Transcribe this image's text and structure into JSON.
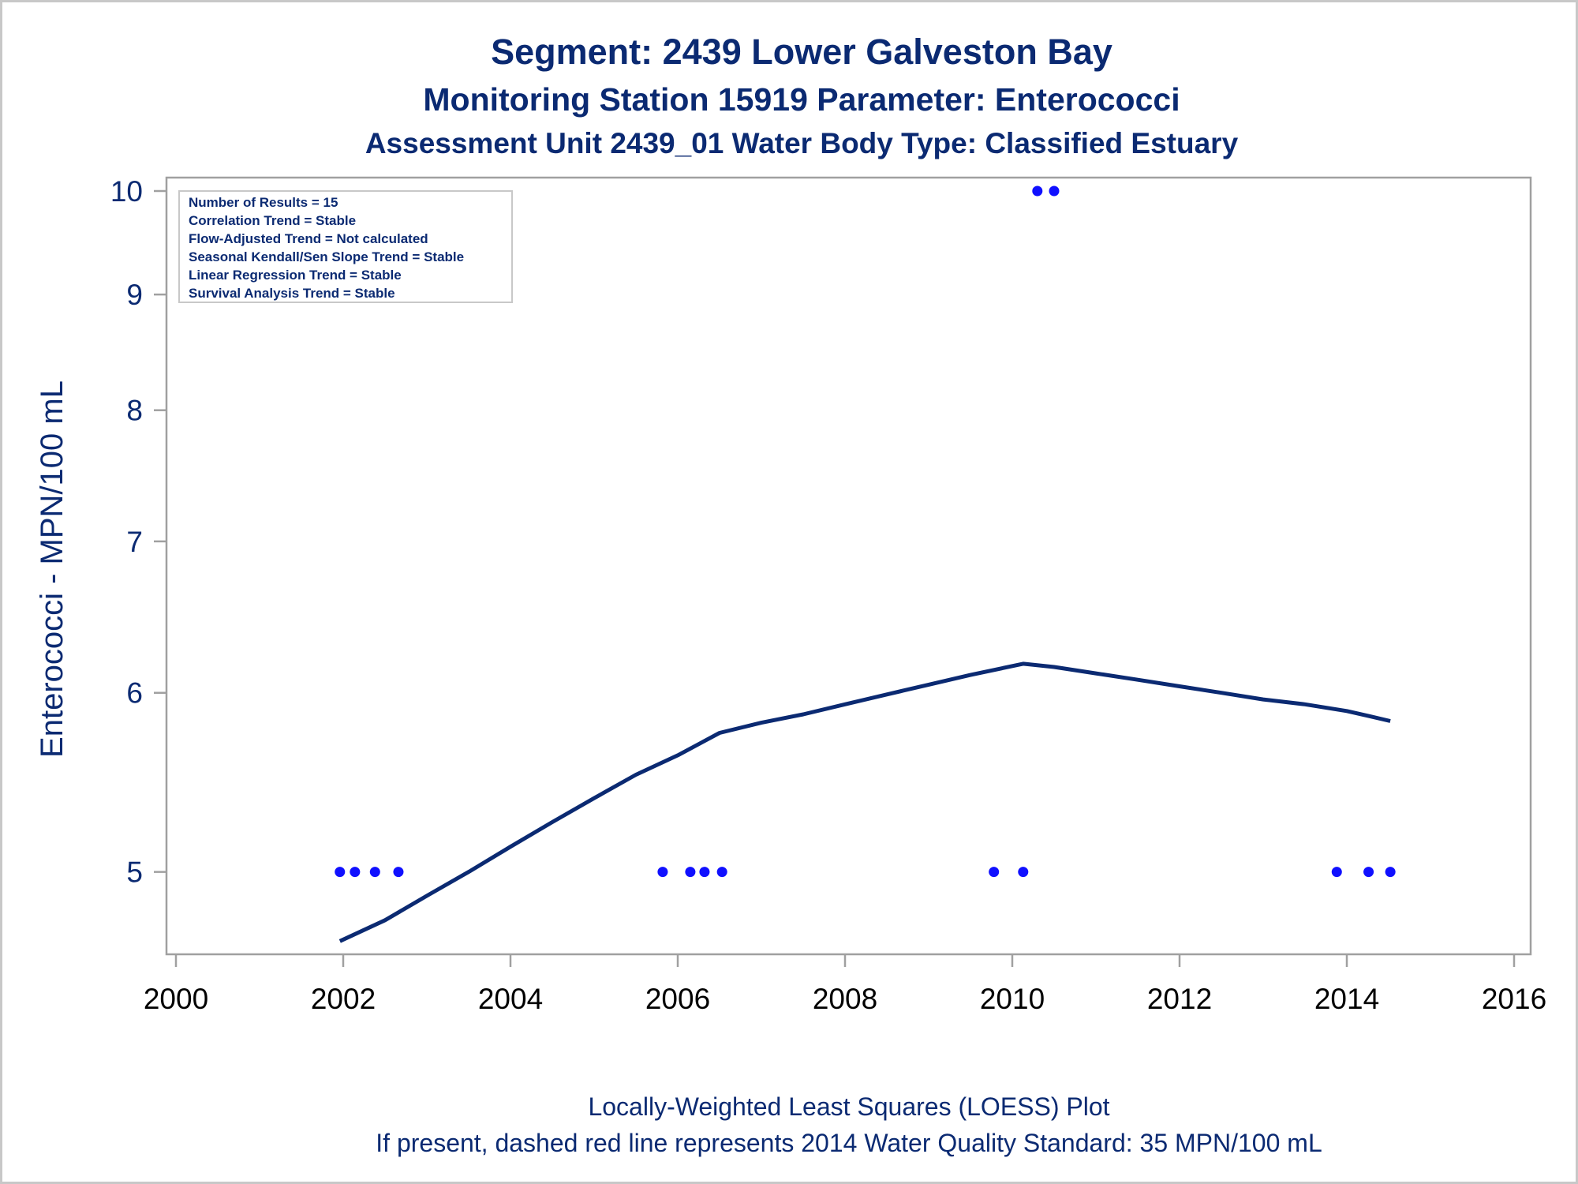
{
  "titles": [
    "Segment: 2439  Lower Galveston Bay",
    "Monitoring Station 15919 Parameter: Enterococci",
    "Assessment Unit 2439_01   Water Body Type: Classified Estuary"
  ],
  "stats_box": [
    "Number of Results = 15",
    "Correlation Trend = Stable",
    "Flow-Adjusted Trend = Not calculated",
    "Seasonal Kendall/Sen Slope Trend = Stable",
    "Linear Regression Trend = Stable",
    "Survival Analysis Trend = Stable"
  ],
  "footnotes": [
    "Locally-Weighted Least Squares (LOESS) Plot",
    "If present, dashed red line represents 2014 Water Quality Standard: 35 MPN/100 mL"
  ],
  "colors": {
    "title": "#0b2a72",
    "points": "#1010ff",
    "loess_line": "#0b2a72",
    "frame": "#a0a0a0",
    "x_tick_labels": "#000000",
    "y_tick_labels": "#0b2a72"
  },
  "chart_data": {
    "type": "scatter",
    "ylabel": "Enterococci - MPN/100 mL",
    "xlabel": "",
    "yscale": "log",
    "xlim": [
      2000,
      2016
    ],
    "ylim": [
      4.62,
      10
    ],
    "x_ticks": [
      2000,
      2002,
      2004,
      2006,
      2008,
      2010,
      2012,
      2014,
      2016
    ],
    "y_ticks": [
      5,
      6,
      7,
      8,
      9,
      10
    ],
    "grid": false,
    "series": [
      {
        "kind": "points",
        "x": [
          2001.96,
          2002.14,
          2002.38,
          2002.66,
          2005.82,
          2006.15,
          2006.32,
          2006.53,
          2009.78,
          2010.13,
          2010.3,
          2010.5,
          2013.88,
          2014.26,
          2014.52
        ],
        "y": [
          5,
          5,
          5,
          5,
          5,
          5,
          5,
          5,
          5,
          5,
          10,
          10,
          5,
          5,
          5
        ]
      },
      {
        "kind": "line",
        "x": [
          2001.96,
          2002.5,
          2003.0,
          2003.5,
          2004.0,
          2004.5,
          2005.0,
          2005.5,
          2006.0,
          2006.5,
          2007.0,
          2007.5,
          2008.0,
          2008.5,
          2009.0,
          2009.5,
          2010.13,
          2010.5,
          2011.0,
          2011.5,
          2012.0,
          2012.5,
          2013.0,
          2013.5,
          2014.0,
          2014.26,
          2014.52
        ],
        "y": [
          4.66,
          4.76,
          4.88,
          5.0,
          5.13,
          5.26,
          5.39,
          5.52,
          5.63,
          5.76,
          5.82,
          5.87,
          5.93,
          5.99,
          6.05,
          6.11,
          6.18,
          6.16,
          6.12,
          6.08,
          6.04,
          6.0,
          5.96,
          5.93,
          5.89,
          5.86,
          5.83
        ]
      }
    ]
  }
}
